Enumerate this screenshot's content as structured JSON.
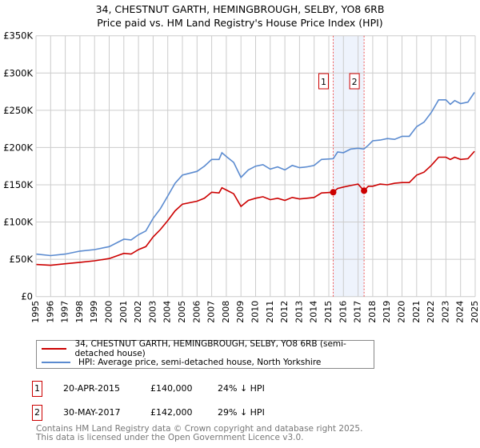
{
  "chart_data": {
    "type": "line",
    "title": "34, CHESTNUT GARTH, HEMINGBROUGH, SELBY, YO8 6RB",
    "subtitle": "Price paid vs. HM Land Registry's House Price Index (HPI)",
    "xlim": [
      1995,
      2025
    ],
    "ylim": [
      0,
      350000
    ],
    "x_ticks": [
      "1995",
      "1996",
      "1997",
      "1998",
      "1999",
      "2000",
      "2001",
      "2002",
      "2003",
      "2004",
      "2005",
      "2006",
      "2007",
      "2008",
      "2009",
      "2010",
      "2011",
      "2012",
      "2013",
      "2014",
      "2015",
      "2016",
      "2017",
      "2018",
      "2019",
      "2020",
      "2021",
      "2022",
      "2023",
      "2024",
      "2025"
    ],
    "y_ticks": [
      {
        "v": 0,
        "label": "£0"
      },
      {
        "v": 50000,
        "label": "£50K"
      },
      {
        "v": 100000,
        "label": "£100K"
      },
      {
        "v": 150000,
        "label": "£150K"
      },
      {
        "v": 200000,
        "label": "£200K"
      },
      {
        "v": 250000,
        "label": "£250K"
      },
      {
        "v": 300000,
        "label": "£300K"
      },
      {
        "v": 350000,
        "label": "£350K"
      }
    ],
    "grid": true,
    "series": [
      {
        "name": "34, CHESTNUT GARTH, HEMINGBROUGH, SELBY, YO8 6RB (semi-detached house)",
        "color": "#cc0000",
        "x": [
          1995,
          1996,
          1997,
          1998,
          1999,
          2000,
          2001,
          2001.5,
          2002,
          2002.5,
          2003,
          2003.5,
          2004,
          2004.5,
          2005,
          2006,
          2006.5,
          2007,
          2007.5,
          2007.7,
          2008,
          2008.5,
          2009,
          2009.5,
          2010,
          2010.5,
          2011,
          2011.5,
          2012,
          2012.5,
          2013,
          2013.5,
          2014,
          2014.5,
          2015.3,
          2015.6,
          2016,
          2016.5,
          2017,
          2017.4,
          2017.7,
          2018,
          2018.5,
          2019,
          2019.5,
          2020,
          2020.5,
          2021,
          2021.5,
          2022,
          2022.5,
          2023,
          2023.3,
          2023.6,
          2024,
          2024.5,
          2024.95
        ],
        "y": [
          43000,
          42000,
          44000,
          46000,
          48000,
          51000,
          58000,
          57000,
          63000,
          67000,
          80000,
          90000,
          102000,
          115000,
          124000,
          128000,
          132000,
          140000,
          139000,
          146000,
          143000,
          138000,
          121000,
          129000,
          132000,
          134000,
          130000,
          132000,
          129000,
          133000,
          131000,
          132000,
          133000,
          139000,
          140000,
          145000,
          147000,
          149000,
          151000,
          142000,
          148000,
          148000,
          151000,
          150000,
          152000,
          153000,
          153000,
          163000,
          167000,
          176000,
          187000,
          187000,
          184000,
          187000,
          184000,
          185000,
          195000
        ]
      },
      {
        "name": "HPI: Average price, semi-detached house, North Yorkshire",
        "color": "#5b8bd0",
        "x": [
          1995,
          1996,
          1997,
          1998,
          1999,
          2000,
          2001,
          2001.5,
          2002,
          2002.5,
          2003,
          2003.5,
          2004,
          2004.5,
          2005,
          2006,
          2006.5,
          2007,
          2007.5,
          2007.7,
          2008,
          2008.5,
          2009,
          2009.5,
          2010,
          2010.5,
          2011,
          2011.5,
          2012,
          2012.5,
          2013,
          2013.5,
          2014,
          2014.5,
          2015.3,
          2015.6,
          2016,
          2016.5,
          2017,
          2017.4,
          2017.7,
          2018,
          2018.5,
          2019,
          2019.5,
          2020,
          2020.5,
          2021,
          2021.5,
          2022,
          2022.5,
          2023,
          2023.3,
          2023.6,
          2024,
          2024.5,
          2024.95
        ],
        "y": [
          57000,
          55000,
          57000,
          61000,
          63000,
          67000,
          77000,
          76000,
          83000,
          88000,
          105000,
          118000,
          135000,
          152000,
          163000,
          168000,
          175000,
          184000,
          184000,
          193000,
          188000,
          180000,
          160000,
          170000,
          175000,
          177000,
          171000,
          174000,
          170000,
          176000,
          173000,
          174000,
          176000,
          184000,
          185000,
          194000,
          193000,
          198000,
          199000,
          198000,
          203000,
          209000,
          210000,
          212000,
          211000,
          215000,
          215000,
          228000,
          234000,
          247000,
          264000,
          264000,
          258000,
          263000,
          259000,
          261000,
          274000
        ]
      }
    ],
    "sales": [
      {
        "n": "1",
        "x": 2015.3,
        "y": 140000
      },
      {
        "n": "2",
        "x": 2017.41,
        "y": 142000
      }
    ],
    "shade": [
      2015.3,
      2017.41
    ]
  },
  "legend": {
    "property": "34, CHESTNUT GARTH, HEMINGBROUGH, SELBY, YO8 6RB (semi-detached house)",
    "hpi": "HPI: Average price, semi-detached house, North Yorkshire"
  },
  "transactions": [
    {
      "n": "1",
      "date": "20-APR-2015",
      "price": "£140,000",
      "delta": "24% ↓ HPI"
    },
    {
      "n": "2",
      "date": "30-MAY-2017",
      "price": "£142,000",
      "delta": "29% ↓ HPI"
    }
  ],
  "footer": {
    "line1": "Contains HM Land Registry data © Crown copyright and database right 2025.",
    "line2": "This data is licensed under the Open Government Licence v3.0."
  }
}
